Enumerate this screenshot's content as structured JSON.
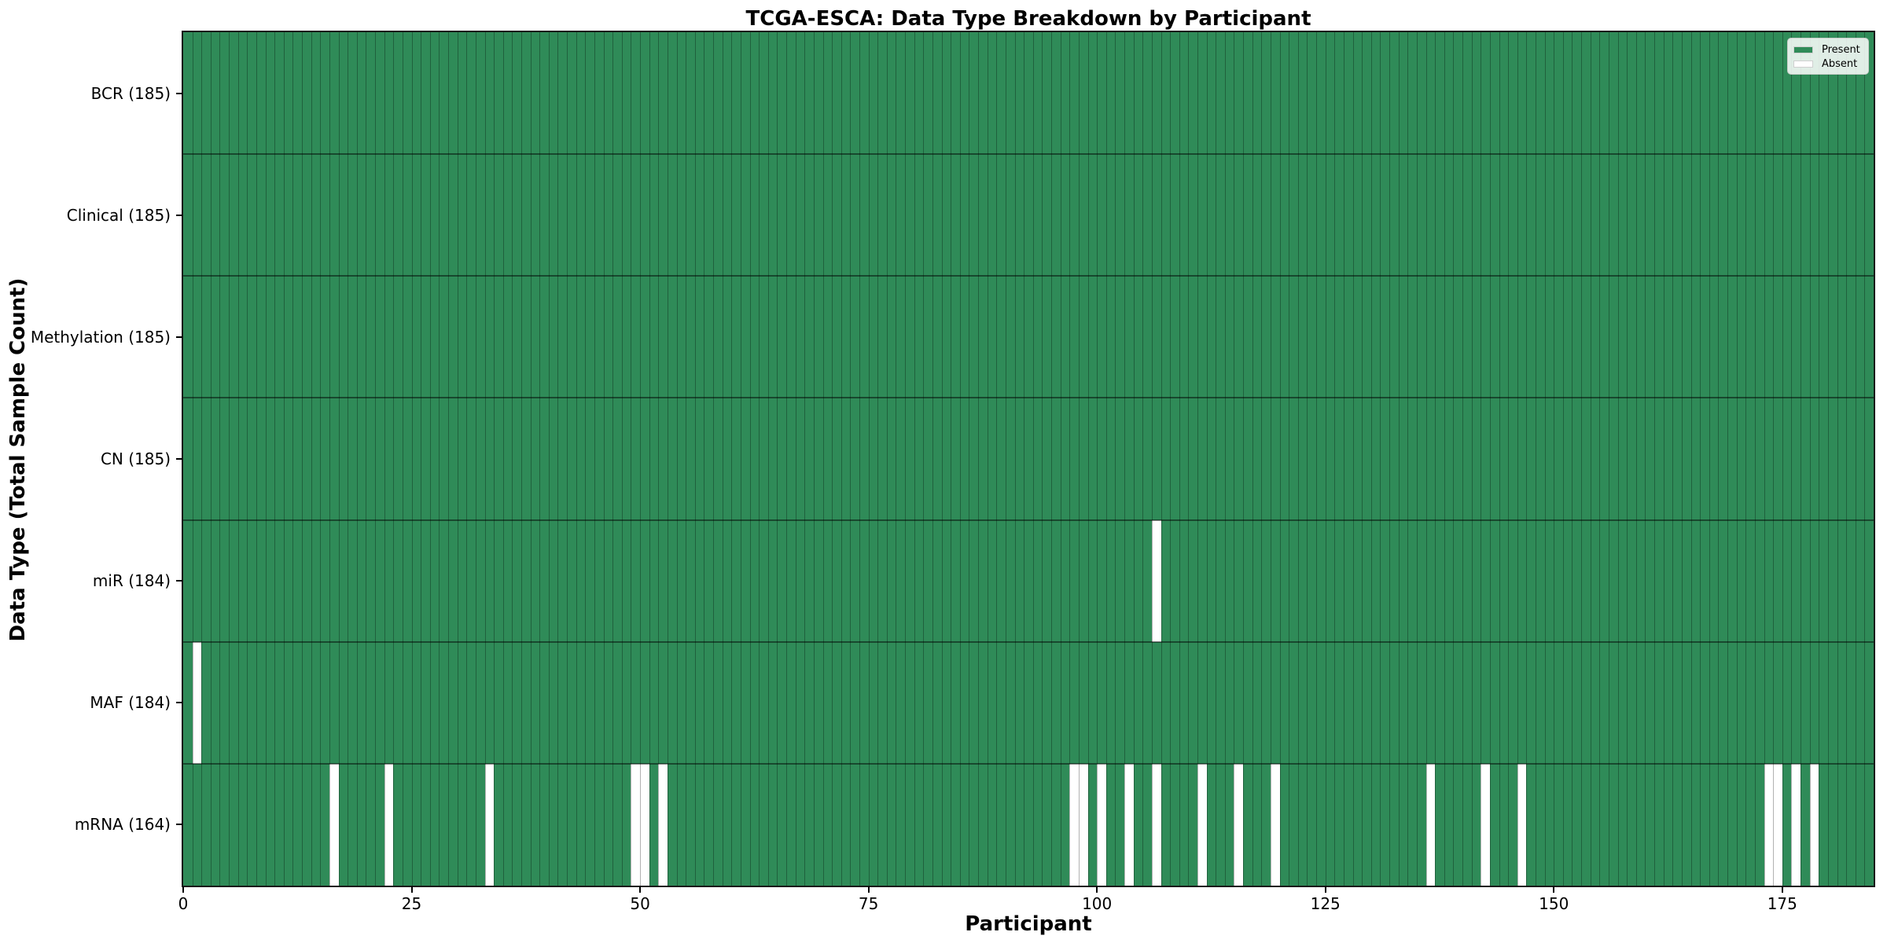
{
  "chart_data": {
    "type": "heatmap",
    "title": "TCGA-ESCA: Data Type Breakdown by Participant",
    "xlabel": "Participant",
    "ylabel": "Data Type (Total Sample Count)",
    "n_participants": 185,
    "x_ticks": [
      0,
      25,
      50,
      75,
      100,
      125,
      150,
      175
    ],
    "colors": {
      "present": "#2f8b58",
      "absent": "#ffffff",
      "gridline": "rgba(0,0,0,0.30)",
      "row_separator": "rgba(0,0,0,0.48)",
      "plot_border": "#1a1a1a"
    },
    "legend": {
      "position": "upper-right",
      "entries": [
        {
          "label": "Present",
          "color": "#2f8b58"
        },
        {
          "label": "Absent",
          "color": "#ffffff"
        }
      ]
    },
    "rows": [
      {
        "label": "BCR (185)",
        "data_type": "BCR",
        "sample_count": 185,
        "absent_participants": []
      },
      {
        "label": "Clinical (185)",
        "data_type": "Clinical",
        "sample_count": 185,
        "absent_participants": []
      },
      {
        "label": "Methylation (185)",
        "data_type": "Methylation",
        "sample_count": 185,
        "absent_participants": []
      },
      {
        "label": "CN (185)",
        "data_type": "CN",
        "sample_count": 185,
        "absent_participants": []
      },
      {
        "label": "miR (184)",
        "data_type": "miR",
        "sample_count": 184,
        "absent_participants": [
          106
        ]
      },
      {
        "label": "MAF (184)",
        "data_type": "MAF",
        "sample_count": 184,
        "absent_participants": [
          1
        ]
      },
      {
        "label": "mRNA (164)",
        "data_type": "mRNA",
        "sample_count": 164,
        "absent_participants": [
          16,
          22,
          33,
          49,
          50,
          52,
          97,
          98,
          100,
          103,
          106,
          111,
          115,
          119,
          136,
          142,
          146,
          173,
          174,
          176,
          178
        ]
      }
    ]
  }
}
